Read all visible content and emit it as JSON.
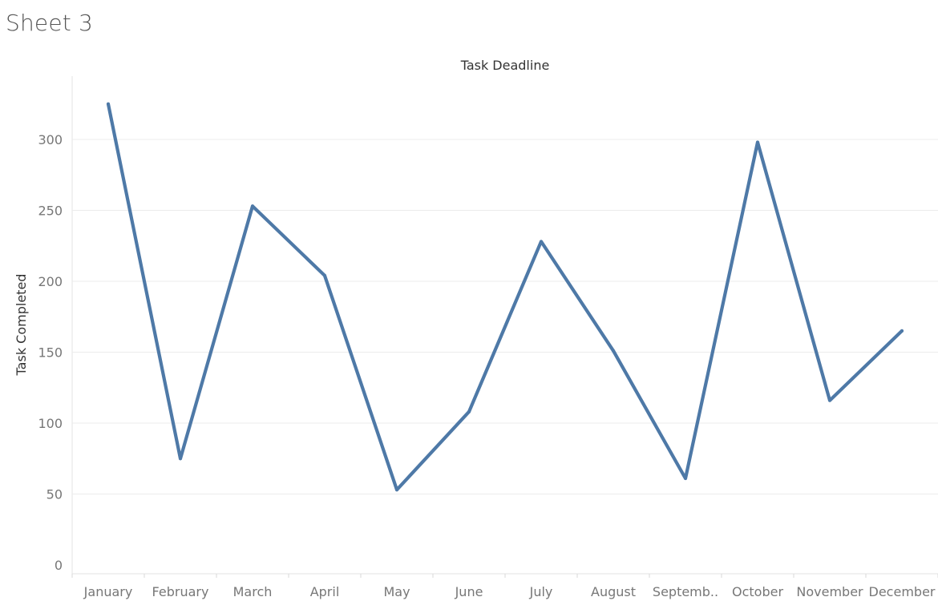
{
  "sheet": {
    "title": "Sheet 3"
  },
  "colors": {
    "series": "#4e79a7"
  },
  "chart_data": {
    "type": "line",
    "title": "Task Deadline",
    "xlabel": "",
    "ylabel": "Task Completed",
    "categories": [
      "January",
      "February",
      "March",
      "April",
      "May",
      "June",
      "July",
      "August",
      "Septemb..",
      "October",
      "November",
      "December"
    ],
    "values": [
      325,
      75,
      253,
      204,
      53,
      108,
      228,
      151,
      61,
      298,
      116,
      165
    ],
    "ylim": [
      0,
      340
    ],
    "yticks": [
      0,
      50,
      100,
      150,
      200,
      250,
      300
    ],
    "grid": true,
    "legend": "none"
  }
}
